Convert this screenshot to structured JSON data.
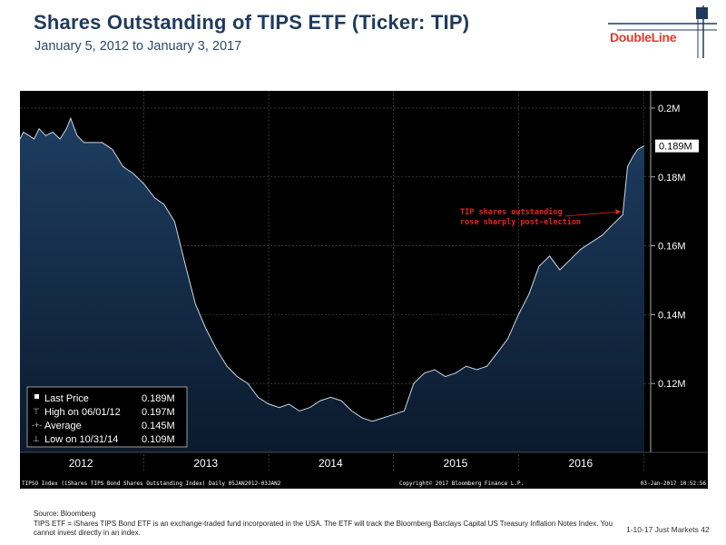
{
  "header": {
    "title": "Shares Outstanding of TIPS ETF (Ticker: TIP)",
    "subtitle": "January 5, 2012 to January 3, 2017",
    "logo_text": "DoubleLine"
  },
  "chart_data": {
    "type": "area",
    "x": [
      "2012-01-05",
      "2012-01-15",
      "2012-02-01",
      "2012-02-15",
      "2012-03-01",
      "2012-03-20",
      "2012-04-10",
      "2012-05-01",
      "2012-05-20",
      "2012-06-01",
      "2012-06-20",
      "2012-07-10",
      "2012-08-01",
      "2012-09-01",
      "2012-10-01",
      "2012-11-01",
      "2012-12-01",
      "2013-01-01",
      "2013-02-01",
      "2013-03-01",
      "2013-04-01",
      "2013-05-01",
      "2013-06-01",
      "2013-07-01",
      "2013-08-01",
      "2013-09-01",
      "2013-10-01",
      "2013-11-01",
      "2013-12-01",
      "2014-01-01",
      "2014-02-01",
      "2014-03-01",
      "2014-04-01",
      "2014-05-01",
      "2014-06-01",
      "2014-07-01",
      "2014-08-01",
      "2014-09-01",
      "2014-10-01",
      "2014-10-31",
      "2014-12-01",
      "2015-01-01",
      "2015-02-01",
      "2015-03-01",
      "2015-04-01",
      "2015-05-01",
      "2015-06-01",
      "2015-07-01",
      "2015-08-01",
      "2015-09-01",
      "2015-10-01",
      "2015-11-01",
      "2015-12-01",
      "2016-01-01",
      "2016-02-01",
      "2016-03-01",
      "2016-04-01",
      "2016-05-01",
      "2016-06-01",
      "2016-07-01",
      "2016-08-01",
      "2016-09-01",
      "2016-10-01",
      "2016-11-01",
      "2016-11-15",
      "2016-12-01",
      "2016-12-15",
      "2017-01-03"
    ],
    "series": [
      {
        "values": [
          0.191,
          0.193,
          0.192,
          0.191,
          0.194,
          0.192,
          0.193,
          0.191,
          0.194,
          0.197,
          0.192,
          0.19,
          0.19,
          0.19,
          0.188,
          0.183,
          0.181,
          0.178,
          0.174,
          0.172,
          0.167,
          0.155,
          0.143,
          0.136,
          0.13,
          0.125,
          0.122,
          0.12,
          0.116,
          0.114,
          0.113,
          0.114,
          0.112,
          0.113,
          0.115,
          0.116,
          0.115,
          0.112,
          0.11,
          0.109,
          0.11,
          0.111,
          0.112,
          0.12,
          0.123,
          0.124,
          0.122,
          0.123,
          0.125,
          0.124,
          0.125,
          0.129,
          0.133,
          0.14,
          0.146,
          0.154,
          0.157,
          0.153,
          0.156,
          0.159,
          0.161,
          0.163,
          0.166,
          0.169,
          0.183,
          0.186,
          0.188,
          0.189
        ]
      }
    ],
    "ylim": [
      0.1,
      0.205
    ],
    "y_ticks": [
      "0.2M",
      "0.18M",
      "0.16M",
      "0.14M",
      "0.12M"
    ],
    "y_tick_values": [
      0.2,
      0.18,
      0.16,
      0.14,
      0.12
    ],
    "x_ticks": [
      "2012",
      "2013",
      "2014",
      "2015",
      "2016"
    ],
    "x_tick_values": [
      "2012-07-01",
      "2013-07-01",
      "2014-07-01",
      "2015-07-01",
      "2016-07-01"
    ],
    "year_boundaries": [
      "2013-01-01",
      "2014-01-01",
      "2015-01-01",
      "2016-01-01",
      "2017-01-01"
    ],
    "last_value_label": "0.189M",
    "last_value": 0.189,
    "annotation": {
      "line1": "TIP shares outstanding",
      "line2": "rose sharply post-election",
      "color": "#e8261e"
    },
    "legend": [
      {
        "label": "Last Price",
        "value": "0.189M"
      },
      {
        "label": "High on 06/01/12",
        "value": "0.197M"
      },
      {
        "label": "Average",
        "value": "0.145M"
      },
      {
        "label": "Low on 10/31/14",
        "value": "0.109M"
      }
    ],
    "bottom_bar": {
      "left": "TIPSO Index (iShares TIPS Bond Shares Outstanding Index)  Daily 05JAN2012-03JAN2",
      "center": "Copyright© 2017 Bloomberg Finance L.P.",
      "right": "03-Jan-2017 10:52:56"
    },
    "colors": {
      "background": "#000000",
      "fill_top": "#1e3d60",
      "fill_bottom": "#0c1c30",
      "line": "#c9d7e6",
      "axis_text": "#ffffff",
      "grid": "#5a5a5a"
    }
  },
  "footer": {
    "source": "Source: Bloomberg",
    "note": "TIPS ETF = iShares TIPS Bond ETF is an exchange-traded fund incorporated in the USA. The ETF will track the Bloomberg Barclays Capital US Treasury Inflation Notes Index. You cannot invest directly in an index.",
    "page": "1-10-17 Just Markets  42"
  }
}
